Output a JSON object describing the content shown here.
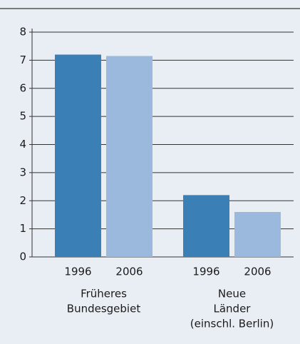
{
  "chart_data": {
    "type": "bar",
    "categories": [
      [
        "Früheres",
        "Bundesgebiet"
      ],
      [
        "Neue",
        "Länder",
        "(einschl. Berlin)"
      ]
    ],
    "series": [
      {
        "name": "1996",
        "color": "#3a80b7",
        "values": [
          7.2,
          2.2
        ]
      },
      {
        "name": "2006",
        "color": "#9bb9dd",
        "values": [
          7.15,
          1.6
        ]
      }
    ],
    "ylim": [
      0,
      8
    ],
    "yticks": [
      0,
      1,
      2,
      3,
      4,
      5,
      6,
      7,
      8
    ],
    "grid": true
  }
}
